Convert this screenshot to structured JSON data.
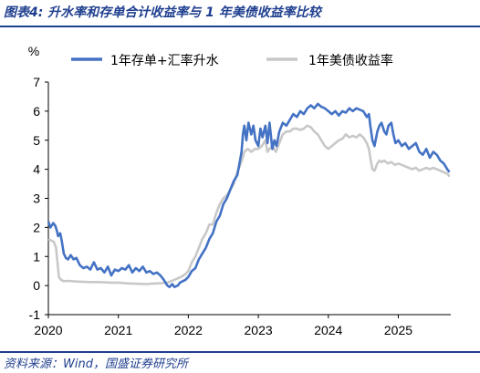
{
  "figure": {
    "title": "图表4:  升水率和存单合计收益率与 1 年美债收益率比较",
    "source": "资料来源：Wind，国盛证券研究所"
  },
  "chart_data": {
    "type": "line",
    "ylabel": "%",
    "ylim": [
      -1,
      7
    ],
    "yticks": [
      -1,
      0,
      1,
      2,
      3,
      4,
      5,
      6,
      7
    ],
    "xlim": [
      2020.0,
      2025.75
    ],
    "xticks": [
      2020,
      2021,
      2022,
      2023,
      2024,
      2025
    ],
    "grid": false,
    "legend": "top",
    "series": [
      {
        "name": "1年存单+汇率升水",
        "color": "#4472c4",
        "points": [
          [
            2020.0,
            2.2
          ],
          [
            2020.03,
            2.0
          ],
          [
            2020.07,
            2.15
          ],
          [
            2020.1,
            2.05
          ],
          [
            2020.12,
            1.9
          ],
          [
            2020.14,
            1.7
          ],
          [
            2020.17,
            1.8
          ],
          [
            2020.19,
            1.55
          ],
          [
            2020.22,
            1.1
          ],
          [
            2020.25,
            0.95
          ],
          [
            2020.28,
            0.9
          ],
          [
            2020.32,
            1.05
          ],
          [
            2020.36,
            0.9
          ],
          [
            2020.4,
            0.95
          ],
          [
            2020.45,
            0.7
          ],
          [
            2020.5,
            0.6
          ],
          [
            2020.55,
            0.65
          ],
          [
            2020.6,
            0.55
          ],
          [
            2020.65,
            0.8
          ],
          [
            2020.7,
            0.55
          ],
          [
            2020.75,
            0.6
          ],
          [
            2020.8,
            0.45
          ],
          [
            2020.85,
            0.65
          ],
          [
            2020.9,
            0.35
          ],
          [
            2020.95,
            0.55
          ],
          [
            2021.0,
            0.5
          ],
          [
            2021.05,
            0.6
          ],
          [
            2021.1,
            0.55
          ],
          [
            2021.15,
            0.7
          ],
          [
            2021.2,
            0.45
          ],
          [
            2021.25,
            0.6
          ],
          [
            2021.3,
            0.5
          ],
          [
            2021.35,
            0.65
          ],
          [
            2021.4,
            0.45
          ],
          [
            2021.45,
            0.5
          ],
          [
            2021.5,
            0.4
          ],
          [
            2021.55,
            0.45
          ],
          [
            2021.6,
            0.35
          ],
          [
            2021.65,
            0.2
          ],
          [
            2021.7,
            0.0
          ],
          [
            2021.73,
            -0.05
          ],
          [
            2021.77,
            0.05
          ],
          [
            2021.8,
            -0.05
          ],
          [
            2021.85,
            0.0
          ],
          [
            2021.88,
            0.1
          ],
          [
            2021.92,
            0.15
          ],
          [
            2021.96,
            0.2
          ],
          [
            2022.0,
            0.3
          ],
          [
            2022.05,
            0.5
          ],
          [
            2022.1,
            0.6
          ],
          [
            2022.15,
            0.9
          ],
          [
            2022.2,
            1.1
          ],
          [
            2022.25,
            1.3
          ],
          [
            2022.3,
            1.6
          ],
          [
            2022.35,
            1.8
          ],
          [
            2022.4,
            2.2
          ],
          [
            2022.45,
            2.4
          ],
          [
            2022.5,
            2.8
          ],
          [
            2022.55,
            3.0
          ],
          [
            2022.6,
            3.3
          ],
          [
            2022.65,
            3.6
          ],
          [
            2022.7,
            3.8
          ],
          [
            2022.73,
            4.2
          ],
          [
            2022.76,
            4.6
          ],
          [
            2022.78,
            5.2
          ],
          [
            2022.8,
            5.5
          ],
          [
            2022.83,
            5.0
          ],
          [
            2022.86,
            5.6
          ],
          [
            2022.9,
            5.2
          ],
          [
            2022.93,
            5.5
          ],
          [
            2022.96,
            5.0
          ],
          [
            2023.0,
            4.8
          ],
          [
            2023.03,
            5.4
          ],
          [
            2023.06,
            5.1
          ],
          [
            2023.1,
            5.5
          ],
          [
            2023.13,
            4.9
          ],
          [
            2023.16,
            5.6
          ],
          [
            2023.2,
            4.7
          ],
          [
            2023.23,
            5.0
          ],
          [
            2023.26,
            4.8
          ],
          [
            2023.3,
            5.3
          ],
          [
            2023.35,
            5.6
          ],
          [
            2023.4,
            5.5
          ],
          [
            2023.45,
            5.7
          ],
          [
            2023.5,
            5.9
          ],
          [
            2023.55,
            5.8
          ],
          [
            2023.6,
            6.0
          ],
          [
            2023.65,
            5.9
          ],
          [
            2023.7,
            6.1
          ],
          [
            2023.75,
            6.2
          ],
          [
            2023.8,
            6.1
          ],
          [
            2023.85,
            6.25
          ],
          [
            2023.9,
            6.15
          ],
          [
            2023.95,
            6.1
          ],
          [
            2024.0,
            6.0
          ],
          [
            2024.05,
            5.9
          ],
          [
            2024.1,
            6.0
          ],
          [
            2024.15,
            5.85
          ],
          [
            2024.2,
            6.0
          ],
          [
            2024.25,
            5.95
          ],
          [
            2024.3,
            6.1
          ],
          [
            2024.35,
            6.0
          ],
          [
            2024.4,
            6.1
          ],
          [
            2024.45,
            6.05
          ],
          [
            2024.5,
            6.0
          ],
          [
            2024.55,
            5.8
          ],
          [
            2024.58,
            5.9
          ],
          [
            2024.6,
            5.5
          ],
          [
            2024.63,
            5.0
          ],
          [
            2024.66,
            4.8
          ],
          [
            2024.7,
            5.3
          ],
          [
            2024.73,
            5.5
          ],
          [
            2024.76,
            5.6
          ],
          [
            2024.8,
            5.3
          ],
          [
            2024.83,
            5.2
          ],
          [
            2024.86,
            5.5
          ],
          [
            2024.9,
            5.6
          ],
          [
            2024.93,
            5.2
          ],
          [
            2024.96,
            4.9
          ],
          [
            2025.0,
            5.0
          ],
          [
            2025.05,
            4.8
          ],
          [
            2025.1,
            4.9
          ],
          [
            2025.15,
            4.7
          ],
          [
            2025.2,
            4.8
          ],
          [
            2025.25,
            4.9
          ],
          [
            2025.3,
            4.6
          ],
          [
            2025.35,
            4.5
          ],
          [
            2025.4,
            4.7
          ],
          [
            2025.45,
            4.4
          ],
          [
            2025.5,
            4.6
          ],
          [
            2025.55,
            4.5
          ],
          [
            2025.6,
            4.3
          ],
          [
            2025.65,
            4.2
          ],
          [
            2025.7,
            4.0
          ],
          [
            2025.73,
            3.9
          ]
        ]
      },
      {
        "name": "1年美债收益率",
        "color": "#c8c8c8",
        "points": [
          [
            2020.0,
            1.6
          ],
          [
            2020.04,
            1.55
          ],
          [
            2020.08,
            1.5
          ],
          [
            2020.11,
            1.3
          ],
          [
            2020.13,
            0.8
          ],
          [
            2020.15,
            0.3
          ],
          [
            2020.18,
            0.2
          ],
          [
            2020.22,
            0.15
          ],
          [
            2020.3,
            0.16
          ],
          [
            2020.4,
            0.14
          ],
          [
            2020.5,
            0.13
          ],
          [
            2020.6,
            0.12
          ],
          [
            2020.7,
            0.12
          ],
          [
            2020.8,
            0.11
          ],
          [
            2020.9,
            0.1
          ],
          [
            2021.0,
            0.1
          ],
          [
            2021.1,
            0.08
          ],
          [
            2021.2,
            0.07
          ],
          [
            2021.3,
            0.06
          ],
          [
            2021.4,
            0.05
          ],
          [
            2021.5,
            0.07
          ],
          [
            2021.6,
            0.08
          ],
          [
            2021.7,
            0.1
          ],
          [
            2021.8,
            0.2
          ],
          [
            2021.85,
            0.25
          ],
          [
            2021.9,
            0.3
          ],
          [
            2021.96,
            0.4
          ],
          [
            2022.0,
            0.5
          ],
          [
            2022.05,
            0.8
          ],
          [
            2022.1,
            1.0
          ],
          [
            2022.15,
            1.3
          ],
          [
            2022.2,
            1.6
          ],
          [
            2022.25,
            1.8
          ],
          [
            2022.3,
            2.1
          ],
          [
            2022.35,
            2.1
          ],
          [
            2022.4,
            2.5
          ],
          [
            2022.45,
            2.8
          ],
          [
            2022.5,
            3.0
          ],
          [
            2022.55,
            3.1
          ],
          [
            2022.6,
            3.3
          ],
          [
            2022.65,
            3.5
          ],
          [
            2022.7,
            3.9
          ],
          [
            2022.75,
            4.2
          ],
          [
            2022.8,
            4.6
          ],
          [
            2022.85,
            4.7
          ],
          [
            2022.9,
            4.6
          ],
          [
            2022.95,
            4.7
          ],
          [
            2023.0,
            4.7
          ],
          [
            2023.05,
            4.8
          ],
          [
            2023.1,
            5.0
          ],
          [
            2023.13,
            4.6
          ],
          [
            2023.16,
            4.7
          ],
          [
            2023.2,
            4.8
          ],
          [
            2023.25,
            4.6
          ],
          [
            2023.3,
            4.9
          ],
          [
            2023.35,
            5.2
          ],
          [
            2023.4,
            5.3
          ],
          [
            2023.45,
            5.3
          ],
          [
            2023.5,
            5.4
          ],
          [
            2023.55,
            5.4
          ],
          [
            2023.6,
            5.35
          ],
          [
            2023.65,
            5.4
          ],
          [
            2023.7,
            5.5
          ],
          [
            2023.75,
            5.45
          ],
          [
            2023.8,
            5.3
          ],
          [
            2023.85,
            5.2
          ],
          [
            2023.9,
            5.0
          ],
          [
            2023.95,
            4.8
          ],
          [
            2024.0,
            4.7
          ],
          [
            2024.05,
            4.8
          ],
          [
            2024.1,
            4.9
          ],
          [
            2024.15,
            5.0
          ],
          [
            2024.2,
            5.05
          ],
          [
            2024.25,
            5.2
          ],
          [
            2024.3,
            5.1
          ],
          [
            2024.35,
            5.15
          ],
          [
            2024.4,
            5.1
          ],
          [
            2024.45,
            5.2
          ],
          [
            2024.5,
            5.1
          ],
          [
            2024.55,
            4.9
          ],
          [
            2024.58,
            4.7
          ],
          [
            2024.6,
            4.4
          ],
          [
            2024.63,
            4.0
          ],
          [
            2024.66,
            3.95
          ],
          [
            2024.7,
            4.2
          ],
          [
            2024.73,
            4.3
          ],
          [
            2024.76,
            4.25
          ],
          [
            2024.8,
            4.3
          ],
          [
            2024.85,
            4.2
          ],
          [
            2024.9,
            4.25
          ],
          [
            2024.95,
            4.15
          ],
          [
            2025.0,
            4.2
          ],
          [
            2025.05,
            4.15
          ],
          [
            2025.1,
            4.1
          ],
          [
            2025.15,
            4.05
          ],
          [
            2025.2,
            4.0
          ],
          [
            2025.25,
            4.05
          ],
          [
            2025.3,
            3.95
          ],
          [
            2025.35,
            4.0
          ],
          [
            2025.4,
            4.05
          ],
          [
            2025.45,
            4.0
          ],
          [
            2025.5,
            4.05
          ],
          [
            2025.55,
            4.0
          ],
          [
            2025.6,
            3.95
          ],
          [
            2025.65,
            3.9
          ],
          [
            2025.7,
            3.85
          ],
          [
            2025.73,
            3.75
          ]
        ]
      }
    ]
  }
}
